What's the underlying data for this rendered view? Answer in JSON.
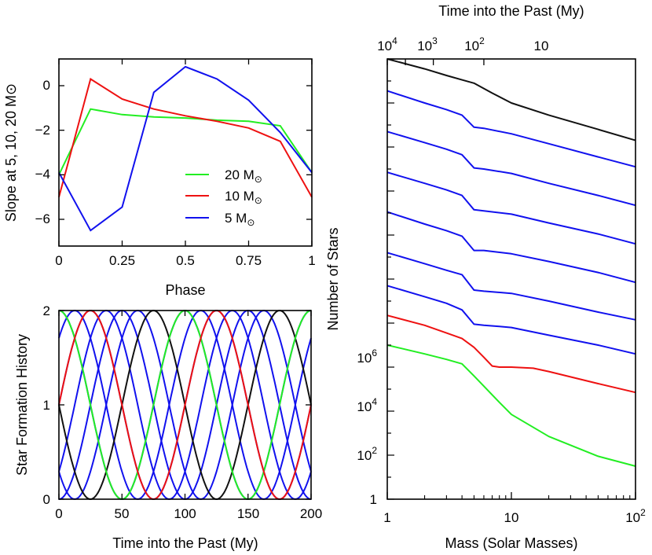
{
  "chart_data": [
    {
      "id": "slope",
      "type": "line",
      "xlabel": "Phase",
      "ylabel": "Slope at 5, 10, 20 M⊙",
      "xlim": [
        0,
        1
      ],
      "ylim": [
        -7.2,
        1.2
      ],
      "x_ticks": [
        "0",
        "0.25",
        "0.5",
        "0.75",
        "1"
      ],
      "y_ticks": [
        "0",
        "−2",
        "−4",
        "−6"
      ],
      "legend_position": "center-right",
      "x": [
        0,
        0.125,
        0.25,
        0.375,
        0.5,
        0.625,
        0.75,
        0.875,
        1
      ],
      "series": [
        {
          "name": "20 M",
          "color": "#22ee22",
          "values": [
            -4.0,
            -1.05,
            -1.3,
            -1.4,
            -1.45,
            -1.55,
            -1.6,
            -1.8,
            -3.9
          ]
        },
        {
          "name": "10 M",
          "color": "#ee1111",
          "values": [
            -5.0,
            0.3,
            -0.6,
            -1.05,
            -1.35,
            -1.6,
            -1.9,
            -2.5,
            -5.0
          ]
        },
        {
          "name": "5 M",
          "color": "#1111ee",
          "values": [
            -3.9,
            -6.5,
            -5.45,
            -0.3,
            0.85,
            0.3,
            -0.65,
            -2.1,
            -3.9
          ]
        }
      ]
    },
    {
      "id": "sfh",
      "type": "line",
      "xlabel": "Time into the Past (My)",
      "ylabel": "Star Formation History",
      "xlim": [
        0,
        200
      ],
      "ylim": [
        0,
        2
      ],
      "x_ticks": [
        "0",
        "50",
        "100",
        "150",
        "200"
      ],
      "y_ticks": [
        "0",
        "1",
        "2"
      ],
      "period": 100,
      "series": [
        {
          "color": "#111111",
          "peak_at": 75
        },
        {
          "color": "#22ee22",
          "peak_at": 100
        },
        {
          "color": "#ee1111",
          "peak_at": 125
        },
        {
          "color": "#1111ee",
          "peak_at": 0
        },
        {
          "color": "#1111ee",
          "peak_at": 12.5
        },
        {
          "color": "#1111ee",
          "peak_at": 25
        },
        {
          "color": "#1111ee",
          "peak_at": 37.5
        },
        {
          "color": "#1111ee",
          "peak_at": 50
        },
        {
          "color": "#1111ee",
          "peak_at": 62.5
        }
      ]
    },
    {
      "id": "mass_function",
      "type": "line",
      "xlabel": "Mass (Solar Masses)",
      "ylabel": "Number of Stars",
      "top_xlabel": "Time into the Past (My)",
      "x_scale": "log",
      "y_scale": "log",
      "xlim": [
        1,
        100
      ],
      "ylim": [
        1,
        1e+20
      ],
      "x_ticks": [
        {
          "base": "1",
          "exp": ""
        },
        {
          "base": "10",
          "exp": ""
        },
        {
          "base": "10",
          "exp": "2"
        }
      ],
      "top_ticks": [
        {
          "base": "10",
          "exp": "4"
        },
        {
          "base": "10",
          "exp": "3"
        },
        {
          "base": "10",
          "exp": "2"
        },
        {
          "base": "10",
          "exp": ""
        }
      ],
      "y_ticks": [
        {
          "base": "1",
          "exp": ""
        },
        {
          "base": "10",
          "exp": "2"
        },
        {
          "base": "10",
          "exp": "4"
        },
        {
          "base": "10",
          "exp": "6"
        }
      ],
      "series": [
        {
          "color": "#22ee22",
          "points": [
            [
              1,
              7.0
            ],
            [
              2,
              6.6
            ],
            [
              3,
              6.35
            ],
            [
              4,
              6.15
            ],
            [
              5,
              5.6
            ],
            [
              8,
              4.4
            ],
            [
              10,
              3.85
            ],
            [
              20,
              2.85
            ],
            [
              50,
              1.95
            ],
            [
              100,
              1.5
            ]
          ]
        },
        {
          "color": "#ee1111",
          "points": [
            [
              1,
              8.35
            ],
            [
              2,
              7.9
            ],
            [
              3,
              7.55
            ],
            [
              4,
              7.3
            ],
            [
              5,
              6.9
            ],
            [
              6,
              6.45
            ],
            [
              7,
              6.05
            ],
            [
              8,
              6.0
            ],
            [
              10,
              6.0
            ],
            [
              15,
              5.95
            ],
            [
              20,
              5.8
            ],
            [
              50,
              5.25
            ],
            [
              100,
              4.85
            ]
          ]
        },
        {
          "color": "#1111ee",
          "points": [
            [
              1,
              9.7
            ],
            [
              2,
              9.2
            ],
            [
              3,
              8.9
            ],
            [
              4,
              8.6
            ],
            [
              5,
              7.95
            ],
            [
              6,
              7.9
            ],
            [
              8,
              7.85
            ],
            [
              10,
              7.8
            ],
            [
              20,
              7.45
            ],
            [
              50,
              7.0
            ],
            [
              100,
              6.6
            ]
          ]
        },
        {
          "color": "#1111ee",
          "points": [
            [
              1,
              11.2
            ],
            [
              2,
              10.7
            ],
            [
              3,
              10.4
            ],
            [
              4,
              10.2
            ],
            [
              5,
              9.5
            ],
            [
              6,
              9.45
            ],
            [
              10,
              9.35
            ],
            [
              20,
              9.0
            ],
            [
              50,
              8.5
            ],
            [
              100,
              8.15
            ]
          ]
        },
        {
          "color": "#1111ee",
          "points": [
            [
              1,
              13.05
            ],
            [
              2,
              12.5
            ],
            [
              3,
              12.2
            ],
            [
              4,
              11.95
            ],
            [
              5,
              11.3
            ],
            [
              6,
              11.3
            ],
            [
              10,
              11.15
            ],
            [
              20,
              10.8
            ],
            [
              50,
              10.3
            ],
            [
              100,
              9.85
            ]
          ]
        },
        {
          "color": "#1111ee",
          "points": [
            [
              1,
              14.85
            ],
            [
              2,
              14.35
            ],
            [
              3,
              14.05
            ],
            [
              4,
              13.8
            ],
            [
              5,
              13.15
            ],
            [
              6,
              13.1
            ],
            [
              10,
              12.95
            ],
            [
              20,
              12.55
            ],
            [
              50,
              12.05
            ],
            [
              100,
              11.6
            ]
          ]
        },
        {
          "color": "#1111ee",
          "points": [
            [
              1,
              16.7
            ],
            [
              2,
              16.2
            ],
            [
              3,
              15.9
            ],
            [
              4,
              15.65
            ],
            [
              5,
              15.05
            ],
            [
              6,
              15.0
            ],
            [
              10,
              14.8
            ],
            [
              20,
              14.35
            ],
            [
              50,
              13.8
            ],
            [
              100,
              13.35
            ]
          ]
        },
        {
          "color": "#1111ee",
          "points": [
            [
              1,
              18.55
            ],
            [
              2,
              18.0
            ],
            [
              3,
              17.7
            ],
            [
              4,
              17.45
            ],
            [
              5,
              16.9
            ],
            [
              6,
              16.85
            ],
            [
              10,
              16.6
            ],
            [
              20,
              16.15
            ],
            [
              50,
              15.55
            ],
            [
              100,
              15.1
            ]
          ]
        },
        {
          "color": "#111111",
          "points": [
            [
              1,
              20.0
            ],
            [
              2,
              19.55
            ],
            [
              3,
              19.25
            ],
            [
              4,
              19.05
            ],
            [
              5,
              18.9
            ],
            [
              7,
              18.45
            ],
            [
              10,
              18.0
            ],
            [
              20,
              17.45
            ],
            [
              50,
              16.8
            ],
            [
              100,
              16.3
            ]
          ]
        }
      ]
    }
  ]
}
